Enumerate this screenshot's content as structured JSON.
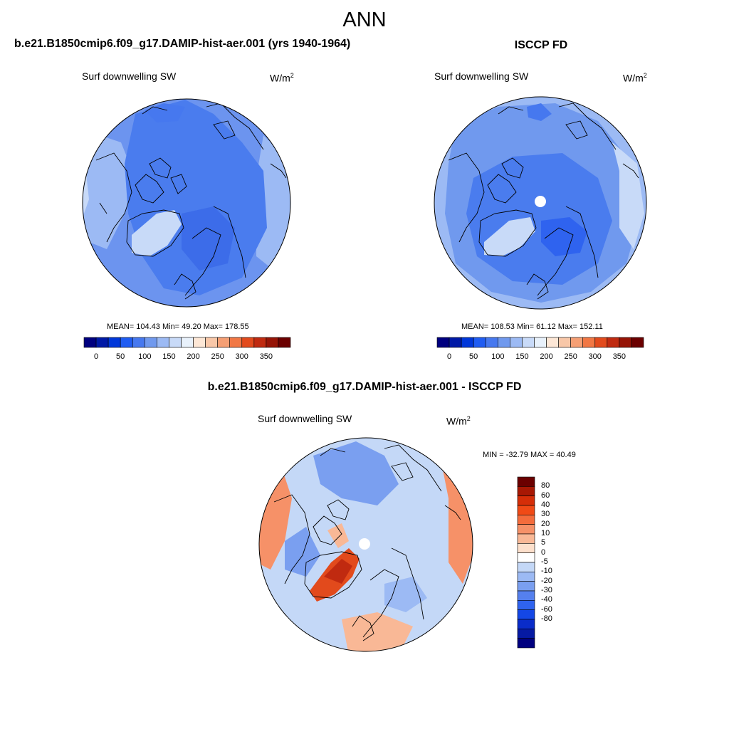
{
  "season": "ANN",
  "colors": {
    "scale": [
      "#00007f",
      "#0019a6",
      "#0037d9",
      "#1f5cf2",
      "#4678ef",
      "#7099ee",
      "#9cbaf4",
      "#c8daf8",
      "#e8f1fb",
      "#fde7d6",
      "#f8c7a8",
      "#f59f74",
      "#f17744",
      "#e24a1c",
      "#c02a10",
      "#961406",
      "#6b0000"
    ],
    "ocean_main": "#4a7cee",
    "ocean_light": "#6c94ef",
    "ice_light": "#bcd0f6",
    "coast": "#000000"
  },
  "panels": {
    "model": {
      "title": "b.e21.B1850cmip6.f09_g17.DAMIP-hist-aer.001 (yrs 1940-1964)",
      "variable": "Surf downwelling SW",
      "units_base": "W/m",
      "units_exp": "2",
      "stats": "MEAN= 104.43  Min=  49.20  Max= 178.55"
    },
    "obs": {
      "title": "ISCCP FD",
      "variable": "Surf downwelling SW",
      "units_base": "W/m",
      "units_exp": "2",
      "stats": "MEAN= 108.53  Min=  61.12  Max= 152.11"
    },
    "diff": {
      "title": "b.e21.B1850cmip6.f09_g17.DAMIP-hist-aer.001 - ISCCP FD",
      "variable": "Surf downwelling SW",
      "units": "W/m",
      "units_exp": "2",
      "stats": "MIN = -32.79 MAX =  40.49"
    }
  },
  "colorbar_h": {
    "ticks": [
      "0",
      "50",
      "100",
      "150",
      "200",
      "250",
      "300",
      "350"
    ]
  },
  "colorbar_v": {
    "ticks": [
      "80",
      "60",
      "40",
      "30",
      "20",
      "10",
      "5",
      "0",
      "-5",
      "-10",
      "-20",
      "-30",
      "-40",
      "-60",
      "-80"
    ],
    "colors": [
      "#6b0000",
      "#a81804",
      "#d52e08",
      "#f04a16",
      "#f46c3c",
      "#f69168",
      "#f9b896",
      "#fde0cc",
      "#ffffff",
      "#c4d8f7",
      "#9cbaf4",
      "#7a9ff0",
      "#5580ee",
      "#2f63ef",
      "#1447e6",
      "#0a2cc9",
      "#061aa3",
      "#00007f"
    ]
  }
}
